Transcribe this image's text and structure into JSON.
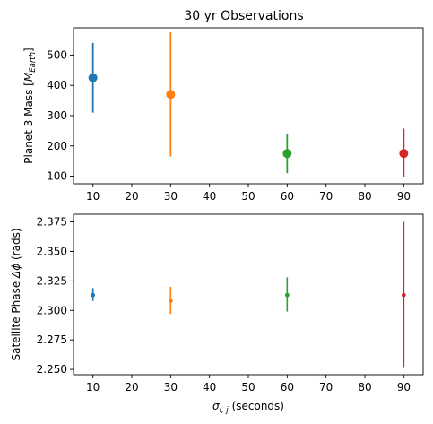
{
  "chart_data": [
    {
      "type": "scatter",
      "title": "30 yr Observations",
      "xlabel": "",
      "ylabel": "Planet 3 Mass [M_Earth]",
      "ylabel_parts": {
        "prefix": "Planet 3 Mass [",
        "symbol": "M",
        "sub": "Earth",
        "suffix": "]"
      },
      "xlim": [
        5,
        95
      ],
      "ylim": [
        75,
        590
      ],
      "xticks": [
        10,
        20,
        30,
        40,
        50,
        60,
        70,
        80,
        90
      ],
      "yticks": [
        100,
        200,
        300,
        400,
        500
      ],
      "grid": false,
      "marker_size": "large",
      "points": [
        {
          "x": 10,
          "y": 425,
          "err_low": 310,
          "err_high": 540,
          "color": "#1f77b4"
        },
        {
          "x": 30,
          "y": 370,
          "err_low": 165,
          "err_high": 575,
          "color": "#ff7f0e"
        },
        {
          "x": 60,
          "y": 175,
          "err_low": 110,
          "err_high": 238,
          "color": "#2ca02c"
        },
        {
          "x": 90,
          "y": 175,
          "err_low": 98,
          "err_high": 257,
          "color": "#d62728"
        }
      ]
    },
    {
      "type": "scatter",
      "title": "",
      "xlabel": "σ_i,j (seconds)",
      "xlabel_parts": {
        "symbol": "σ",
        "sub": "i, j",
        "suffix": " (seconds)"
      },
      "ylabel": "Satellite Phase Δϕ (rads)",
      "ylabel_parts": {
        "prefix": "Satellite Phase ",
        "symbol": "Δϕ",
        "suffix": " (rads)"
      },
      "xlim": [
        5,
        95
      ],
      "ylim": [
        2.2455,
        2.3815
      ],
      "xticks": [
        10,
        20,
        30,
        40,
        50,
        60,
        70,
        80,
        90
      ],
      "yticks": [
        2.25,
        2.275,
        2.3,
        2.325,
        2.35,
        2.375
      ],
      "ytick_labels": [
        "2.250",
        "2.275",
        "2.300",
        "2.325",
        "2.350",
        "2.375"
      ],
      "grid": false,
      "marker_size": "small",
      "points": [
        {
          "x": 10,
          "y": 2.313,
          "err_low": 2.308,
          "err_high": 2.319,
          "color": "#1f77b4"
        },
        {
          "x": 30,
          "y": 2.308,
          "err_low": 2.297,
          "err_high": 2.32,
          "color": "#ff7f0e"
        },
        {
          "x": 60,
          "y": 2.313,
          "err_low": 2.299,
          "err_high": 2.328,
          "color": "#2ca02c"
        },
        {
          "x": 90,
          "y": 2.313,
          "err_low": 2.252,
          "err_high": 2.375,
          "color": "#d62728"
        }
      ]
    }
  ]
}
